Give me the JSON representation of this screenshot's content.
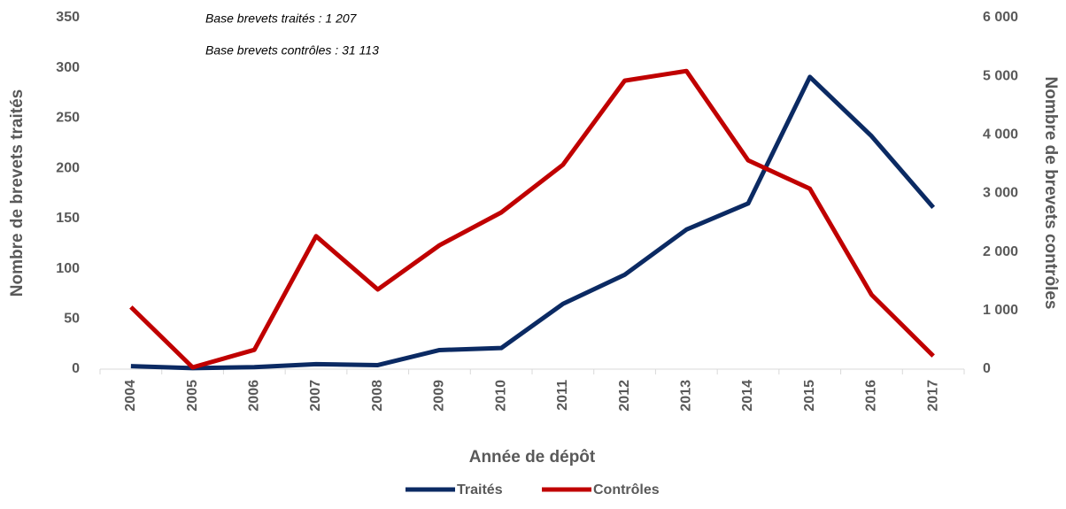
{
  "chart_data": {
    "type": "line",
    "x_label": "Année de dépôt",
    "y_label": "Nombre de brevets traités",
    "y2_label": "Nombre de brevets contrôles",
    "annotations": [
      "Base brevets traités : 1 207",
      "Base brevets contrôles : 31 113"
    ],
    "categories": [
      "2004",
      "2005",
      "2006",
      "2007",
      "2008",
      "2009",
      "2010",
      "2011",
      "2012",
      "2013",
      "2014",
      "2015",
      "2016",
      "2017"
    ],
    "series": [
      {
        "name": "Traités",
        "color": "#0b2a63",
        "values": [
          3,
          1,
          2,
          5,
          4,
          19,
          21,
          65,
          94,
          139,
          165,
          291,
          232,
          161
        ]
      },
      {
        "name": "Contrôles",
        "color": "#c00000",
        "axis": "y2",
        "values": [
          1060,
          30,
          330,
          2270,
          1360,
          2115,
          2675,
          3490,
          4925,
          5090,
          3565,
          3080,
          1270,
          225
        ]
      }
    ],
    "ylim": [
      0,
      350
    ],
    "yticks": [
      0,
      50,
      100,
      150,
      200,
      250,
      300,
      350
    ],
    "y2lim": [
      0,
      6000
    ],
    "y2ticks": [
      {
        "value": 0,
        "label": "0"
      },
      {
        "value": 1000,
        "label": "1 000"
      },
      {
        "value": 2000,
        "label": "2 000"
      },
      {
        "value": 3000,
        "label": "3 000"
      },
      {
        "value": 4000,
        "label": "4 000"
      },
      {
        "value": 5000,
        "label": "5 000"
      },
      {
        "value": 6000,
        "label": "6 000"
      }
    ],
    "legend": "bottom"
  }
}
